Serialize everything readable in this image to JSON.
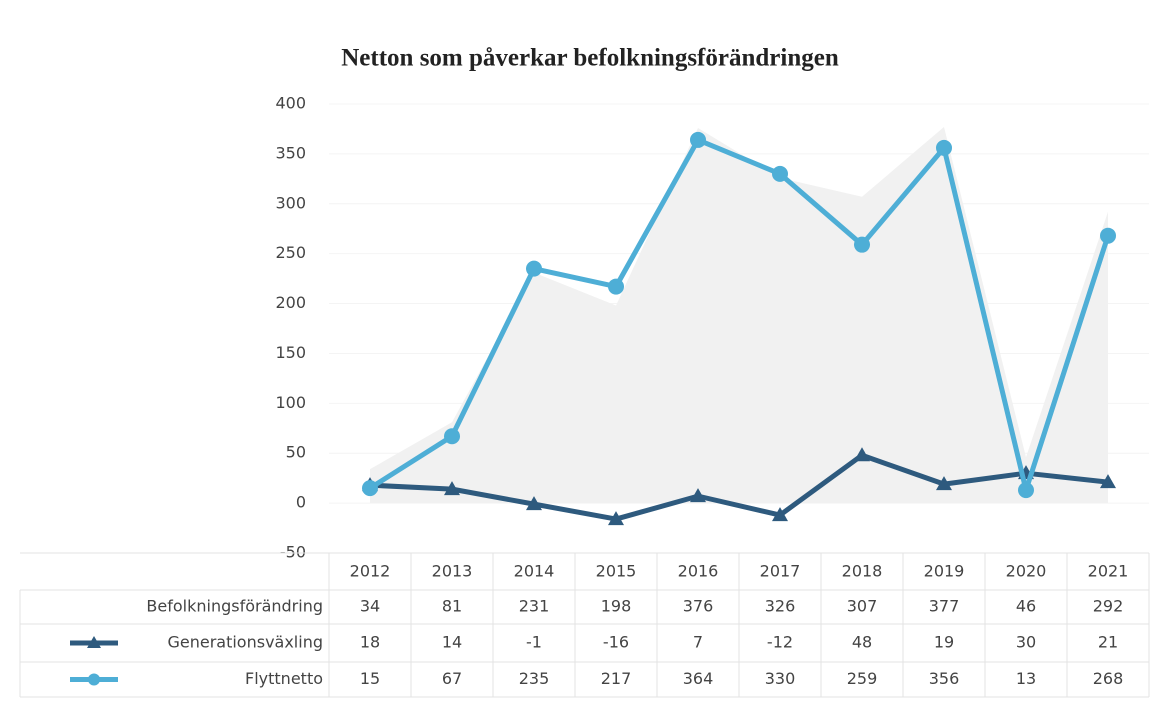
{
  "chart_data": {
    "type": "line",
    "title": "Netton som påverkar befolkningsförändringen",
    "categories": [
      "2012",
      "2013",
      "2014",
      "2015",
      "2016",
      "2017",
      "2018",
      "2019",
      "2020",
      "2021"
    ],
    "series": [
      {
        "name": "Befolkningsförändring",
        "color": "#f1f1f1",
        "style": "area",
        "values": [
          34,
          81,
          231,
          198,
          376,
          326,
          307,
          377,
          46,
          292
        ]
      },
      {
        "name": "Generationsväxling",
        "color": "#2e5a7e",
        "marker": "triangle",
        "values": [
          18,
          14,
          -1,
          -16,
          7,
          -12,
          48,
          19,
          30,
          21
        ]
      },
      {
        "name": "Flyttnetto",
        "color": "#4eaed6",
        "marker": "circle",
        "values": [
          15,
          67,
          235,
          217,
          364,
          330,
          259,
          356,
          13,
          268
        ]
      }
    ],
    "ylim": [
      -50,
      400
    ],
    "yticks": [
      -50,
      0,
      50,
      100,
      150,
      200,
      250,
      300,
      350,
      400
    ],
    "grid": true,
    "data_table": true
  }
}
